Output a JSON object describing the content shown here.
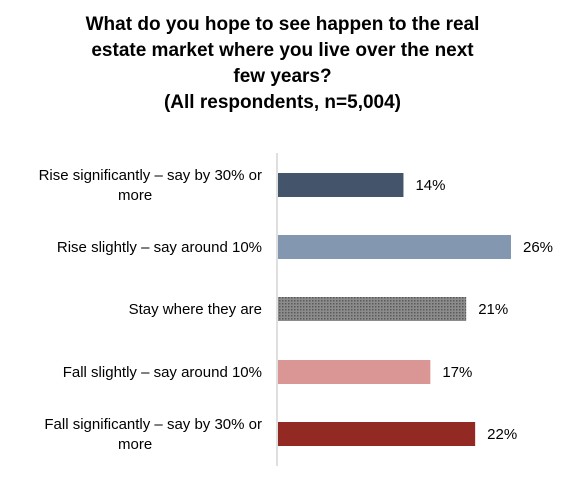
{
  "chart_data": {
    "type": "bar",
    "orientation": "horizontal",
    "title_lines": [
      "What do you hope to see happen to the real",
      "estate market where you live over the next",
      "few years?",
      "(All respondents, n=5,004)"
    ],
    "categories": [
      [
        "Rise significantly – say by 30% or",
        "more"
      ],
      [
        "Rise slightly – say around 10%"
      ],
      [
        "Stay where they are"
      ],
      [
        "Fall slightly – say around 10%"
      ],
      [
        "Fall significantly – say by 30% or",
        "more"
      ]
    ],
    "values": [
      14,
      26,
      21,
      17,
      22
    ],
    "value_labels": [
      "14%",
      "26%",
      "21%",
      "17%",
      "22%"
    ],
    "colors": [
      "#44546a",
      "#8497b0",
      "#7f7f7f",
      "#d99694",
      "#922a23"
    ],
    "patterns": [
      "solid",
      "solid",
      "dotted",
      "solid",
      "solid"
    ],
    "xlim": [
      0,
      30
    ],
    "grid": false,
    "legend": "none"
  }
}
